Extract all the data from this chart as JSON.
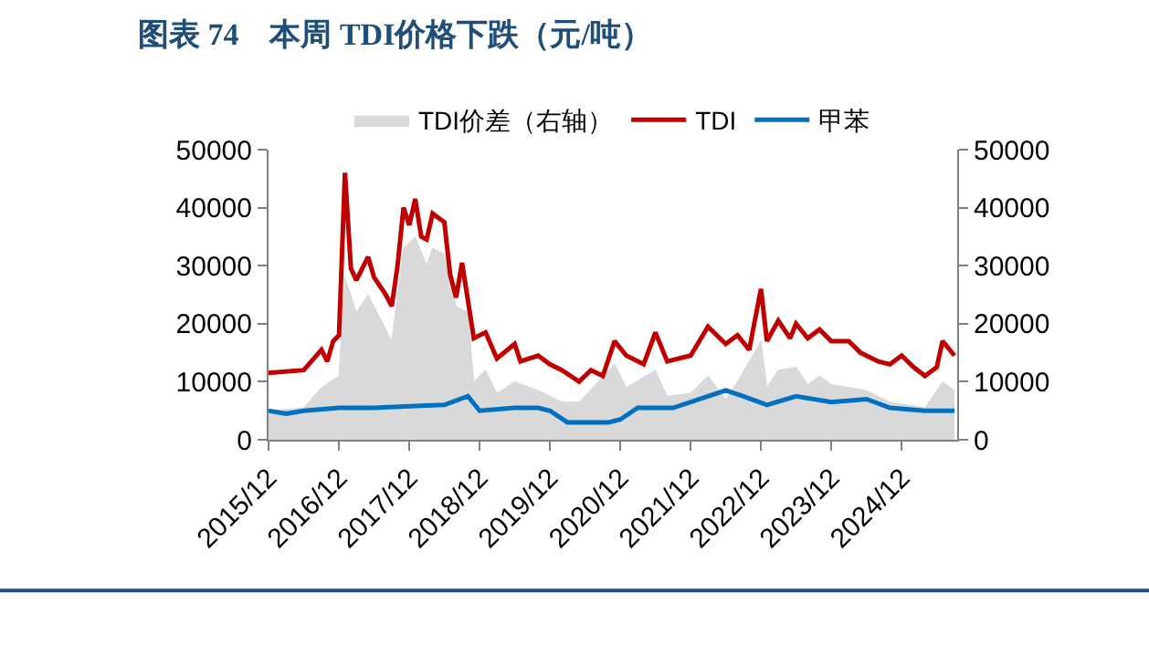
{
  "chart_data": {
    "type": "line",
    "title": "图表 74　本周 TDI价格下跌（元/吨）",
    "xlim": [
      "2015-12-01",
      "2025-09-15"
    ],
    "xticks": [
      {
        "value": "2015-12",
        "label": "2015/12"
      },
      {
        "value": "2016-12",
        "label": "2016/12"
      },
      {
        "value": "2017-12",
        "label": "2017/12"
      },
      {
        "value": "2018-12",
        "label": "2018/12"
      },
      {
        "value": "2019-12",
        "label": "2019/12"
      },
      {
        "value": "2020-12",
        "label": "2020/12"
      },
      {
        "value": "2021-12",
        "label": "2021/12"
      },
      {
        "value": "2022-12",
        "label": "2022/12"
      },
      {
        "value": "2023-12",
        "label": "2023/12"
      },
      {
        "value": "2024-12",
        "label": "2024/12"
      }
    ],
    "ylim": [
      0,
      50000
    ],
    "yticks": [
      0,
      10000,
      20000,
      30000,
      40000,
      50000
    ],
    "y2lim": [
      0,
      50000
    ],
    "y2ticks": [
      0,
      10000,
      20000,
      30000,
      40000,
      50000
    ],
    "legend": "top",
    "series": [
      {
        "name": "TDI价差（右轴）",
        "type": "area",
        "axis": "y2",
        "color": "#d9d9d9",
        "x": [
          "2015-12",
          "2016-06",
          "2016-09",
          "2016-12",
          "2017-01",
          "2017-03",
          "2017-05",
          "2017-09",
          "2017-11",
          "2018-01",
          "2018-03",
          "2018-04",
          "2018-06",
          "2018-08",
          "2018-10",
          "2018-11",
          "2019-01",
          "2019-03",
          "2019-06",
          "2019-10",
          "2020-02",
          "2020-05",
          "2020-11",
          "2021-01",
          "2021-06",
          "2021-08",
          "2021-12",
          "2022-03",
          "2022-06",
          "2022-08",
          "2022-12",
          "2023-01",
          "2023-03",
          "2023-06",
          "2023-08",
          "2023-10",
          "2023-12",
          "2024-06",
          "2024-10",
          "2025-04",
          "2025-07",
          "2025-09"
        ],
        "values": [
          5000,
          5500,
          9000,
          11000,
          28000,
          22000,
          25000,
          17000,
          33000,
          35000,
          30000,
          33000,
          32000,
          23000,
          22000,
          10000,
          12000,
          8000,
          10000,
          8500,
          6500,
          6500,
          13000,
          9000,
          12000,
          7500,
          8000,
          11000,
          7000,
          10000,
          17000,
          9000,
          12000,
          12500,
          9500,
          11000,
          9500,
          8500,
          6500,
          5500,
          10000,
          8500
        ]
      },
      {
        "name": "TDI",
        "color": "#c00000",
        "x": [
          "2015-12",
          "2016-06",
          "2016-09",
          "2016-10",
          "2016-11",
          "2016-12",
          "2017-01",
          "2017-02",
          "2017-03",
          "2017-05",
          "2017-06",
          "2017-08",
          "2017-09",
          "2017-10",
          "2017-11",
          "2017-12",
          "2018-01",
          "2018-02",
          "2018-03",
          "2018-04",
          "2018-06",
          "2018-07",
          "2018-08",
          "2018-09",
          "2018-11",
          "2019-01",
          "2019-03",
          "2019-06",
          "2019-07",
          "2019-10",
          "2019-12",
          "2020-02",
          "2020-05",
          "2020-07",
          "2020-09",
          "2020-11",
          "2021-01",
          "2021-04",
          "2021-06",
          "2021-08",
          "2021-12",
          "2022-03",
          "2022-06",
          "2022-08",
          "2022-10",
          "2022-12",
          "2023-01",
          "2023-03",
          "2023-05",
          "2023-06",
          "2023-08",
          "2023-10",
          "2023-12",
          "2024-03",
          "2024-05",
          "2024-08",
          "2024-10",
          "2024-12",
          "2025-02",
          "2025-04",
          "2025-06",
          "2025-07",
          "2025-09"
        ],
        "values": [
          11500,
          12000,
          15500,
          13500,
          17000,
          18000,
          46000,
          29500,
          27500,
          31500,
          28000,
          25000,
          23000,
          30000,
          40000,
          37000,
          41500,
          35000,
          34500,
          39000,
          37500,
          28500,
          24500,
          30500,
          17500,
          18500,
          14000,
          16500,
          13500,
          14500,
          13000,
          12000,
          10000,
          12000,
          11000,
          17000,
          14500,
          13000,
          18500,
          13500,
          14500,
          19500,
          16500,
          18000,
          15500,
          26000,
          17000,
          20500,
          17500,
          20000,
          17500,
          19000,
          17000,
          17000,
          15000,
          13500,
          13000,
          14500,
          12500,
          11000,
          12500,
          17000,
          14500
        ]
      },
      {
        "name": "甲苯",
        "color": "#0070c0",
        "x": [
          "2015-12",
          "2016-03",
          "2016-06",
          "2016-12",
          "2017-06",
          "2018-01",
          "2018-06",
          "2018-10",
          "2018-12",
          "2019-06",
          "2019-10",
          "2019-12",
          "2020-03",
          "2020-10",
          "2020-12",
          "2021-03",
          "2021-09",
          "2022-03",
          "2022-06",
          "2022-09",
          "2023-01",
          "2023-06",
          "2023-12",
          "2024-06",
          "2024-10",
          "2025-04",
          "2025-09"
        ],
        "values": [
          5000,
          4500,
          5000,
          5500,
          5500,
          5800,
          6000,
          7500,
          5000,
          5500,
          5500,
          5000,
          3000,
          3000,
          3500,
          5500,
          5500,
          7500,
          8500,
          7500,
          6000,
          7500,
          6500,
          7000,
          5500,
          5000,
          5000
        ]
      }
    ]
  }
}
